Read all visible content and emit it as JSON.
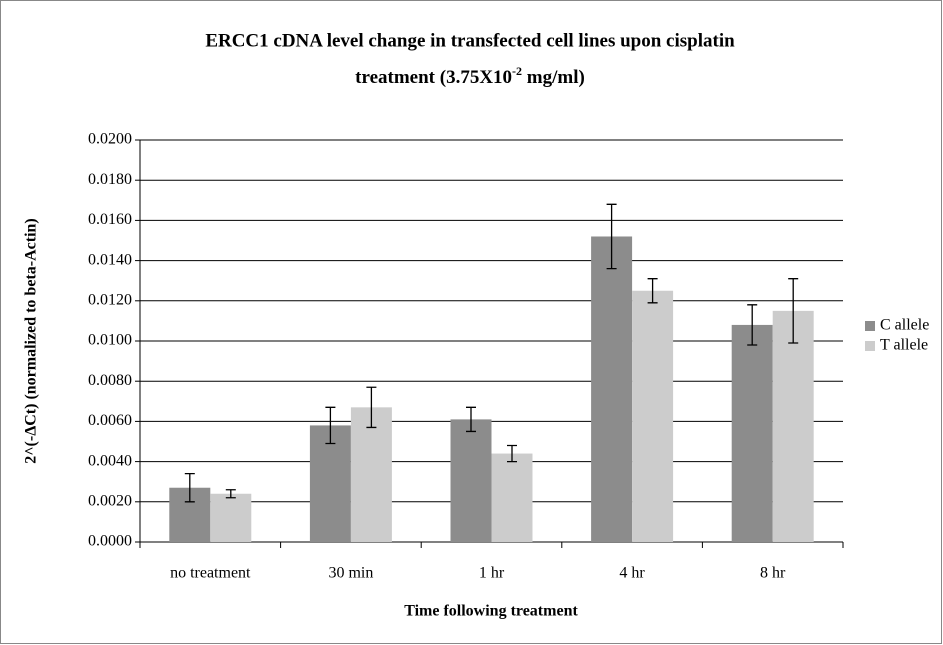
{
  "chart_data": {
    "type": "bar",
    "title": [
      "ERCC1 cDNA level change in transfected cell lines upon cisplatin",
      "treatment (3.75X10",
      "-2",
      " mg/ml)"
    ],
    "x_label": "Time following treatment",
    "y_label": "2^(-ΔCt) (normalized to beta-Actin)",
    "categories": [
      "no treatment",
      "30 min",
      "1 hr",
      "4 hr",
      "8 hr"
    ],
    "series": [
      {
        "name": "C allele",
        "color": "#8c8c8c",
        "values": [
          0.0027,
          0.0058,
          0.0061,
          0.0152,
          0.0108
        ],
        "errors": [
          0.0007,
          0.0009,
          0.0006,
          0.0016,
          0.001
        ]
      },
      {
        "name": "T allele",
        "color": "#cccccc",
        "values": [
          0.0024,
          0.0067,
          0.0044,
          0.0125,
          0.0115
        ],
        "errors": [
          0.0002,
          0.001,
          0.0004,
          0.0006,
          0.0016
        ]
      }
    ],
    "ylim": [
      0,
      0.02
    ],
    "yticks": [
      {
        "value": 0,
        "label": "0.0000"
      },
      {
        "value": 0.002,
        "label": "0.0020"
      },
      {
        "value": 0.004,
        "label": "0.0040"
      },
      {
        "value": 0.006,
        "label": "0.0060"
      },
      {
        "value": 0.008,
        "label": "0.0080"
      },
      {
        "value": 0.01,
        "label": "0.0100"
      },
      {
        "value": 0.012,
        "label": "0.0120"
      },
      {
        "value": 0.014,
        "label": "0.0140"
      },
      {
        "value": 0.016,
        "label": "0.0160"
      },
      {
        "value": 0.018,
        "label": "0.0180"
      },
      {
        "value": 0.02,
        "label": "0.0200"
      }
    ],
    "grid": true,
    "legend": "right"
  }
}
